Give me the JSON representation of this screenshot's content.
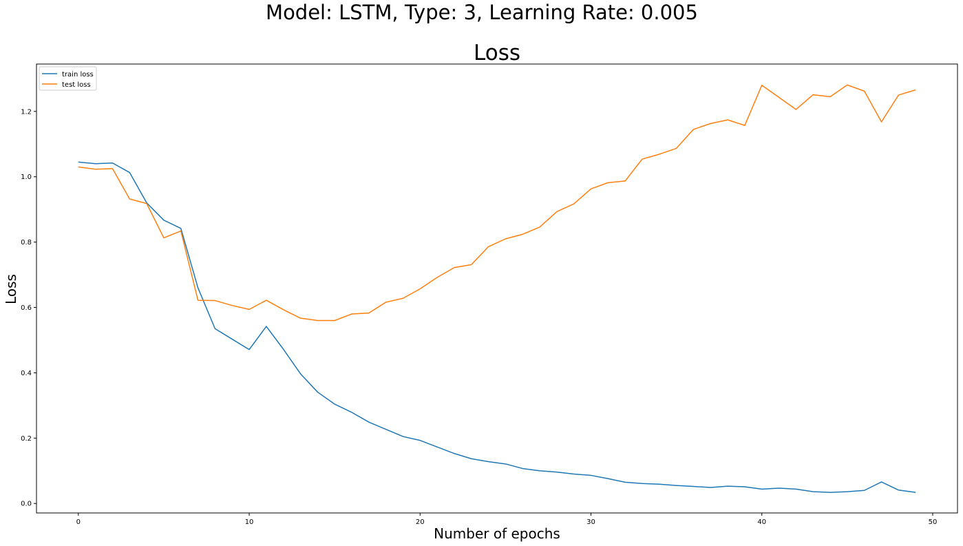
{
  "figure": {
    "suptitle": "Model: LSTM, Type: 3, Learning Rate: 0.005"
  },
  "chart_data": {
    "type": "line",
    "title": "Loss",
    "xlabel": "Number of epochs",
    "ylabel": "Loss",
    "xlim": [
      -2.45,
      51.45
    ],
    "ylim": [
      -0.029,
      1.345
    ],
    "xticks": [
      0,
      10,
      20,
      30,
      40,
      50
    ],
    "yticks": [
      0.0,
      0.2,
      0.4,
      0.6,
      0.8,
      1.0,
      1.2
    ],
    "xtick_labels": [
      "0",
      "10",
      "20",
      "30",
      "40",
      "50"
    ],
    "ytick_labels": [
      "0.0",
      "0.2",
      "0.4",
      "0.6",
      "0.8",
      "1.0",
      "1.2"
    ],
    "grid": false,
    "legend_position": "upper-left",
    "x": [
      0,
      1,
      2,
      3,
      4,
      5,
      6,
      7,
      8,
      9,
      10,
      11,
      12,
      13,
      14,
      15,
      16,
      17,
      18,
      19,
      20,
      21,
      22,
      23,
      24,
      25,
      26,
      27,
      28,
      29,
      30,
      31,
      32,
      33,
      34,
      35,
      36,
      37,
      38,
      39,
      40,
      41,
      42,
      43,
      44,
      45,
      46,
      47,
      48,
      49
    ],
    "series": [
      {
        "name": "train loss",
        "color": "#1f77b4",
        "values": [
          1.045,
          1.04,
          1.042,
          1.013,
          0.92,
          0.867,
          0.842,
          0.66,
          0.535,
          0.503,
          0.471,
          0.542,
          0.472,
          0.397,
          0.341,
          0.304,
          0.279,
          0.249,
          0.227,
          0.205,
          0.193,
          0.173,
          0.153,
          0.137,
          0.128,
          0.121,
          0.107,
          0.1,
          0.096,
          0.09,
          0.086,
          0.076,
          0.065,
          0.061,
          0.059,
          0.055,
          0.052,
          0.049,
          0.053,
          0.051,
          0.044,
          0.047,
          0.044,
          0.036,
          0.034,
          0.036,
          0.04,
          0.066,
          0.041,
          0.034
        ]
      },
      {
        "name": "test loss",
        "color": "#ff7f0e",
        "values": [
          1.03,
          1.023,
          1.025,
          0.932,
          0.918,
          0.813,
          0.834,
          0.622,
          0.621,
          0.606,
          0.594,
          0.622,
          0.593,
          0.567,
          0.56,
          0.56,
          0.58,
          0.583,
          0.616,
          0.628,
          0.657,
          0.692,
          0.722,
          0.731,
          0.786,
          0.81,
          0.824,
          0.846,
          0.893,
          0.917,
          0.963,
          0.982,
          0.987,
          1.054,
          1.069,
          1.087,
          1.145,
          1.163,
          1.174,
          1.157,
          1.28,
          1.243,
          1.206,
          1.251,
          1.245,
          1.281,
          1.262,
          1.168,
          1.25,
          1.266
        ]
      }
    ]
  }
}
